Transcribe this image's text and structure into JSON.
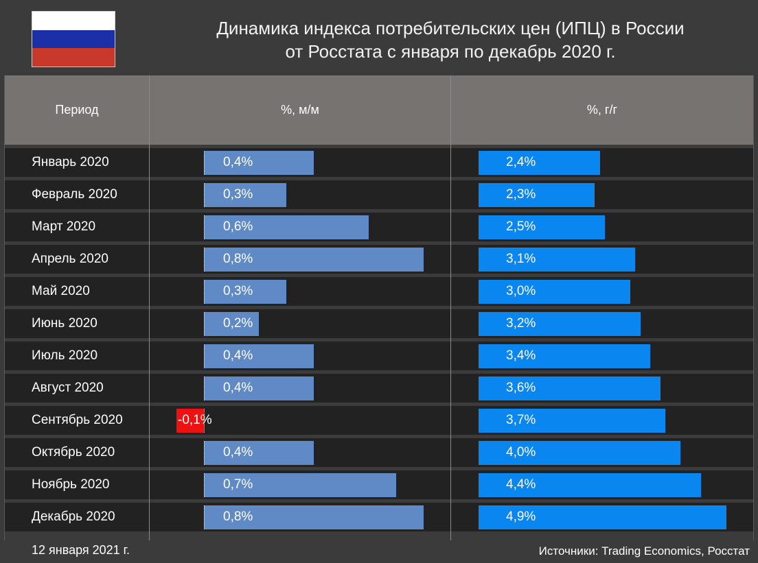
{
  "header": {
    "title_line1": "Динамика индекса потребительских цен (ИПЦ) в России",
    "title_line2": "от Росстата с января по декабрь 2020 г.",
    "flag_colors": [
      "#ffffff",
      "#1a2fa8",
      "#c8392b"
    ]
  },
  "table": {
    "col_period": "Период",
    "col_mm": "%, м/м",
    "col_yy": "%, г/г"
  },
  "colors": {
    "mm_bar": "#5f8ac6",
    "mm_negative": "#ee1111",
    "yy_bar": "#0a86f0"
  },
  "chart_data": {
    "type": "bar",
    "categories": [
      "Январь 2020",
      "Февраль 2020",
      "Март 2020",
      "Апрель 2020",
      "Май 2020",
      "Июнь 2020",
      "Июль 2020",
      "Август 2020",
      "Сентябрь 2020",
      "Октябрь 2020",
      "Ноябрь 2020",
      "Декабрь 2020"
    ],
    "series": [
      {
        "name": "%, м/м",
        "values": [
          0.4,
          0.3,
          0.6,
          0.8,
          0.3,
          0.2,
          0.4,
          0.4,
          -0.1,
          0.4,
          0.7,
          0.8
        ],
        "labels": [
          "0,4%",
          "0,3%",
          "0,6%",
          "0,8%",
          "0,3%",
          "0,2%",
          "0,4%",
          "0,4%",
          "-0,1%",
          "0,4%",
          "0,7%",
          "0,8%"
        ]
      },
      {
        "name": "%, г/г",
        "values": [
          2.4,
          2.3,
          2.5,
          3.1,
          3.0,
          3.2,
          3.4,
          3.6,
          3.7,
          4.0,
          4.4,
          4.9
        ],
        "labels": [
          "2,4%",
          "2,3%",
          "2,5%",
          "3,1%",
          "3,0%",
          "3,2%",
          "3,4%",
          "3,6%",
          "3,7%",
          "4,0%",
          "4,4%",
          "4,9%"
        ]
      }
    ]
  },
  "footer": {
    "date": "12 января 2021 г.",
    "source": "Источники: Trading Economics, Росстат"
  }
}
